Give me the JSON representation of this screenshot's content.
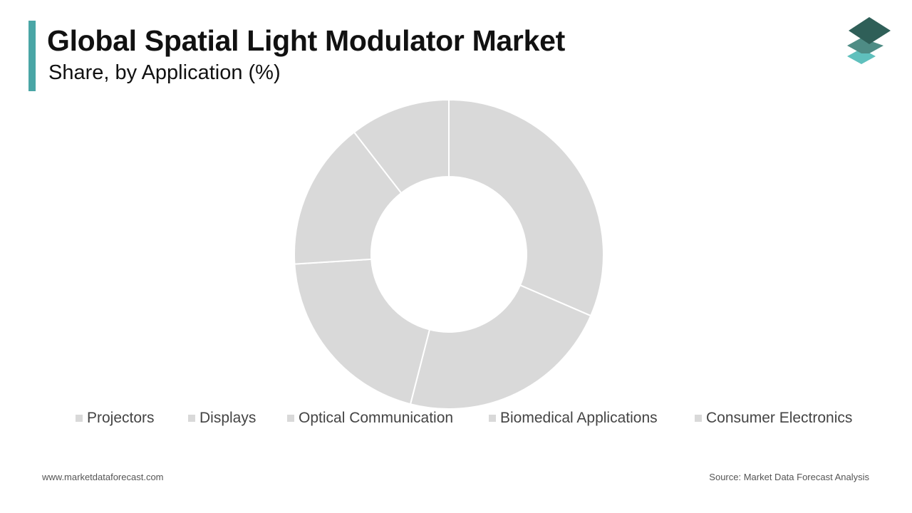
{
  "header": {
    "title": "Global Spatial Light Modulator Market",
    "subtitle": "Share, by Application (%)"
  },
  "logo": {
    "icon": "stacked-layers-logo-icon",
    "colors": [
      "#2f5f58",
      "#4e8c85",
      "#5fc0bd"
    ]
  },
  "chart_data": {
    "type": "pie",
    "variant": "donut",
    "title": "Global Spatial Light Modulator Market",
    "subtitle": "Share, by Application (%)",
    "categories": [
      "Projectors",
      "Displays",
      "Optical Communication",
      "Biomedical Applications",
      "Consumer Electronics"
    ],
    "values": [
      31.5,
      22.5,
      20.0,
      15.5,
      10.5
    ],
    "unit": "%",
    "legend_position": "bottom",
    "slice_color": "#d9d9d9",
    "slice_border_color": "#ffffff",
    "data_labels_shown": false
  },
  "footer": {
    "website": "www.marketdataforecast.com",
    "source": "Source: Market Data Forecast Analysis"
  },
  "colors": {
    "accent": "#4aa6a6",
    "legend_swatch": "#d9d9d9"
  }
}
